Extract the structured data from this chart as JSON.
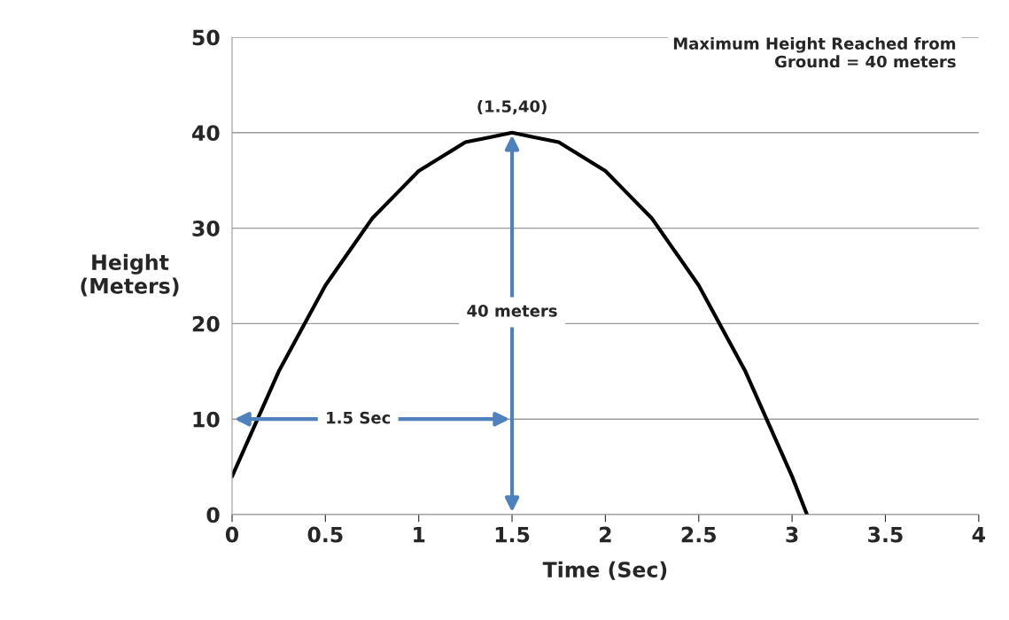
{
  "chart_data": {
    "type": "line",
    "xlabel": "Time (Sec)",
    "ylabel": "Height\n(Meters)",
    "x": [
      0,
      0.125,
      0.25,
      0.375,
      0.5,
      0.625,
      0.75,
      0.875,
      1.0,
      1.125,
      1.25,
      1.375,
      1.5,
      1.625,
      1.75,
      1.875,
      2.0,
      2.125,
      2.25,
      2.375,
      2.5,
      2.625,
      2.75,
      2.875,
      3.0,
      3.08
    ],
    "series": [
      {
        "color": "#000000",
        "values": [
          4,
          9.5,
          15,
          19.5,
          24,
          27.5,
          31,
          33.5,
          36,
          37.5,
          39,
          39.5,
          40,
          39.5,
          39,
          37.5,
          36,
          33.5,
          31,
          27.5,
          24,
          19.5,
          15,
          9.5,
          4,
          0
        ]
      }
    ],
    "xlim": [
      0,
      4
    ],
    "xticks": [
      0,
      0.5,
      1,
      1.5,
      2,
      2.5,
      3,
      3.5,
      4
    ],
    "ylim": [
      0,
      50
    ],
    "yticks": [
      0,
      10,
      20,
      30,
      40,
      50
    ],
    "grid": "y",
    "marker": "none",
    "line_style": "solid",
    "annotations": [
      {
        "text": "(1.5,40)",
        "x": 1.5,
        "y": 40
      },
      "40 meters",
      "1.5 Sec",
      "Maximum Height Reached from\nGround = 40 meters"
    ]
  }
}
